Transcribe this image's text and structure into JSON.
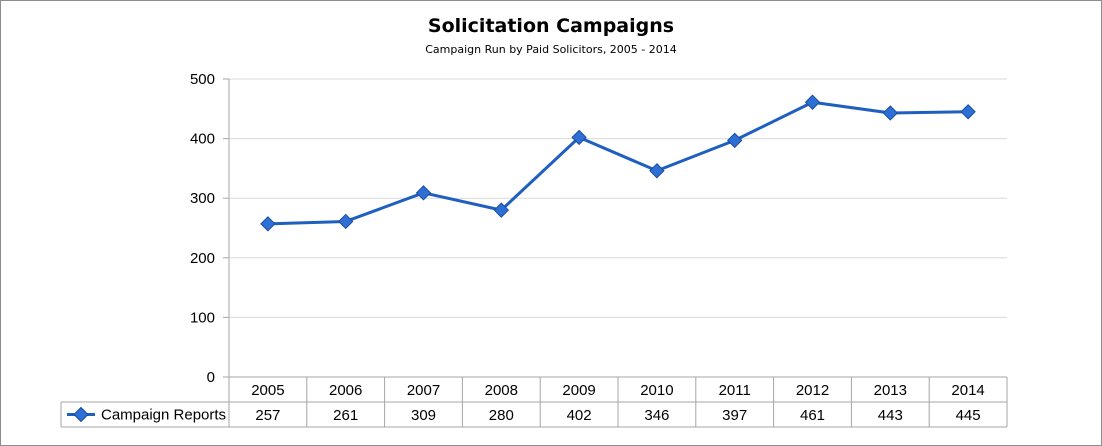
{
  "chart_data": {
    "type": "line",
    "title": "Solicitation Campaigns",
    "subtitle": "Campaign Run by Paid Solicitors, 2005 - 2014",
    "categories": [
      "2005",
      "2006",
      "2007",
      "2008",
      "2009",
      "2010",
      "2011",
      "2012",
      "2013",
      "2014"
    ],
    "series": [
      {
        "name": "Campaign Reports",
        "values": [
          257,
          261,
          309,
          280,
          402,
          346,
          397,
          461,
          443,
          445
        ]
      }
    ],
    "ylim": [
      0,
      500
    ],
    "yticks": [
      "0",
      "100",
      "200",
      "300",
      "400",
      "500"
    ],
    "grid": true,
    "legend": "data-table-left",
    "data_table": true,
    "colors": {
      "series": "#1f5fbf",
      "marker": "#2e6fd6",
      "grid": "#d9d9d9",
      "axis": "#a6a6a6"
    }
  }
}
